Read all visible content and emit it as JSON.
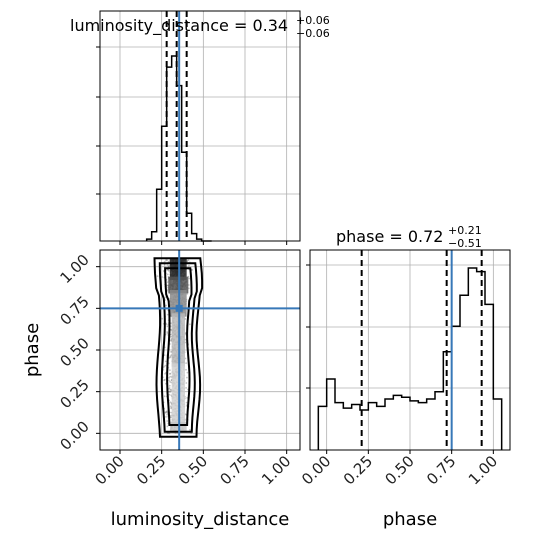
{
  "colors": {
    "truth": "#3778b8",
    "hist": "#000000",
    "grid": "#b0b0b0",
    "contour": "#000000"
  },
  "chart_data": {
    "type": "corner",
    "parameters": [
      {
        "name": "luminosity_distance",
        "xlabel": "luminosity_distance",
        "title_name": "luminosity_distance",
        "title_value": "0.34",
        "title_plus": "+0.06",
        "title_minus": "−0.06",
        "range": [
          -0.12,
          1.08
        ],
        "ticks": [
          "0.00",
          "0.25",
          "0.50",
          "0.75",
          "1.00"
        ],
        "tick_values": [
          0,
          0.25,
          0.5,
          0.75,
          1.0
        ],
        "quantiles": [
          0.28,
          0.34,
          0.4
        ],
        "truth": 0.355,
        "hist_bins": [
          0.16,
          0.19,
          0.22,
          0.25,
          0.28,
          0.31,
          0.34,
          0.37,
          0.4,
          0.43,
          0.46,
          0.49,
          0.52,
          0.55
        ],
        "hist_counts": [
          1,
          5,
          28,
          62,
          94,
          100,
          84,
          48,
          15,
          4,
          1,
          0,
          0
        ]
      },
      {
        "name": "phase",
        "xlabel": "phase",
        "ylabel": "phase",
        "title_name": "phase",
        "title_value": "0.72",
        "title_plus": "+0.21",
        "title_minus": "−0.51",
        "range": [
          -0.1,
          1.1
        ],
        "ticks": [
          "0.00",
          "0.25",
          "0.50",
          "0.75",
          "1.00"
        ],
        "tick_values": [
          0,
          0.25,
          0.5,
          0.75,
          1.0
        ],
        "quantiles": [
          0.21,
          0.72,
          0.93
        ],
        "truth": 0.75,
        "hist_bins": [
          -0.05,
          0.0,
          0.05,
          0.1,
          0.15,
          0.2,
          0.25,
          0.3,
          0.35,
          0.4,
          0.45,
          0.5,
          0.55,
          0.6,
          0.65,
          0.7,
          0.75,
          0.8,
          0.85,
          0.9,
          0.95,
          1.0,
          1.05
        ],
        "hist_counts": [
          24,
          39,
          26,
          23,
          25,
          22,
          26,
          24,
          28,
          30,
          29,
          27,
          26,
          28,
          32,
          54,
          68,
          85,
          100,
          98,
          80,
          28
        ]
      }
    ],
    "scatter_center": [
      0.355,
      0.8
    ],
    "grid": true
  }
}
